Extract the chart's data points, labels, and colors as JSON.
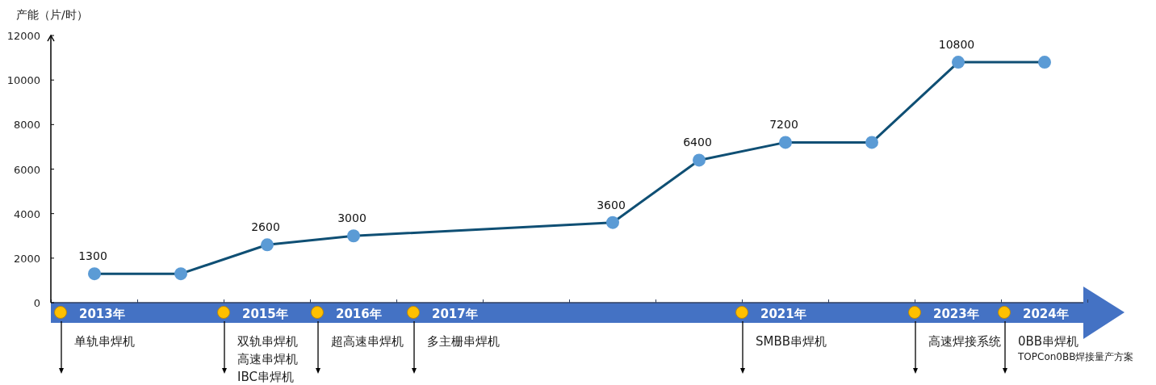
{
  "chart_data": {
    "type": "line",
    "ylabel": "产能（片/时）",
    "categories": [
      null,
      null,
      null,
      null,
      null,
      null,
      null,
      null,
      null,
      null,
      null,
      null
    ],
    "series": [
      {
        "color": "#0f4f74",
        "values": [
          1300,
          1300,
          2600,
          3000,
          null,
          null,
          3600,
          6400,
          7200,
          7200,
          10800,
          10800
        ],
        "value_labels": [
          "1300",
          null,
          "2600",
          "3000",
          null,
          null,
          "3600",
          "6400",
          "7200",
          null,
          "10800",
          null
        ]
      }
    ],
    "marker": "circle",
    "ylim": [
      0,
      12000
    ],
    "yticks": [
      0,
      2000,
      4000,
      6000,
      8000,
      10000,
      12000
    ],
    "tick_labels": "y",
    "annotations": [
      "2013年",
      "单轨串焊机",
      "2015年",
      "双轨串焊机",
      "高速串焊机",
      "IBC串焊机",
      "2016年",
      "超高速串焊机",
      "2017年",
      "多主栅串焊机",
      "2021年",
      "SMBB串焊机",
      "2023年",
      "高速焊接系统",
      "2024年",
      "0BB串焊机",
      "TOPCon0BB焊接量产方案"
    ]
  }
}
